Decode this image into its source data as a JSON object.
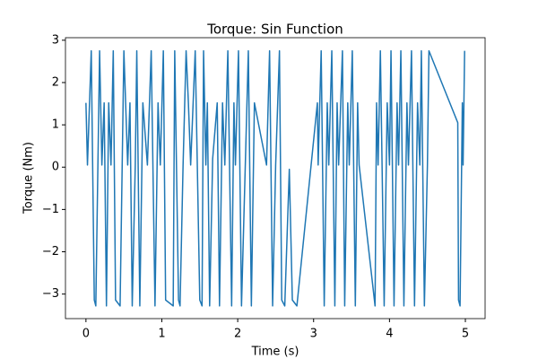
{
  "chart_data": {
    "type": "line",
    "title": "Torque: Sin Function",
    "xlabel": "Time (s)",
    "ylabel": "Torque (Nm)",
    "x": [
      0.0,
      0.02,
      0.07,
      0.11,
      0.13,
      0.18,
      0.21,
      0.24,
      0.27,
      0.3,
      0.33,
      0.36,
      0.39,
      0.45,
      0.5,
      0.55,
      0.58,
      0.61,
      0.65,
      0.67,
      0.71,
      0.75,
      0.81,
      0.86,
      0.91,
      0.95,
      0.98,
      1.02,
      1.05,
      1.15,
      1.17,
      1.22,
      1.24,
      1.28,
      1.32,
      1.35,
      1.38,
      1.44,
      1.5,
      1.53,
      1.55,
      1.58,
      1.6,
      1.63,
      1.67,
      1.73,
      1.76,
      1.8,
      1.83,
      1.87,
      1.92,
      1.95,
      1.97,
      2.01,
      2.05,
      2.1,
      2.14,
      2.18,
      2.22,
      2.38,
      2.42,
      2.46,
      2.5,
      2.55,
      2.58,
      2.62,
      2.68,
      2.72,
      2.78,
      3.05,
      3.06,
      3.1,
      3.14,
      3.18,
      3.2,
      3.24,
      3.28,
      3.31,
      3.33,
      3.38,
      3.41,
      3.45,
      3.47,
      3.51,
      3.55,
      3.58,
      3.6,
      3.81,
      3.83,
      3.85,
      3.88,
      3.93,
      3.97,
      4.0,
      4.02,
      4.06,
      4.1,
      4.12,
      4.15,
      4.19,
      4.23,
      4.25,
      4.29,
      4.33,
      4.37,
      4.4,
      4.42,
      4.46,
      4.5,
      4.52,
      4.9,
      4.91,
      4.93,
      4.96,
      4.97,
      4.99
    ],
    "series": [
      {
        "name": "Torque",
        "color": "#1f77b4",
        "values": [
          1.52,
          0.05,
          2.75,
          -3.14,
          -3.28,
          2.75,
          0.05,
          1.52,
          -3.28,
          1.52,
          0.05,
          2.75,
          -3.14,
          -3.28,
          2.75,
          0.05,
          1.52,
          -3.28,
          0.05,
          2.75,
          -3.28,
          1.52,
          0.05,
          2.75,
          -3.28,
          1.52,
          0.05,
          2.75,
          -3.14,
          -3.28,
          2.75,
          -3.14,
          -3.28,
          0.05,
          2.75,
          1.52,
          0.05,
          2.75,
          -3.14,
          -3.28,
          2.75,
          0.05,
          1.52,
          -3.28,
          0.2,
          1.52,
          -3.28,
          1.52,
          0.05,
          2.75,
          -3.28,
          1.52,
          0.05,
          2.75,
          -3.28,
          0.05,
          2.75,
          -3.28,
          1.52,
          0.05,
          2.75,
          -3.28,
          0.05,
          2.75,
          -3.14,
          -3.28,
          -0.05,
          -3.14,
          -3.28,
          1.52,
          0.05,
          2.75,
          -3.28,
          1.52,
          0.05,
          2.75,
          -3.28,
          1.52,
          0.05,
          2.75,
          -3.28,
          1.52,
          0.05,
          2.75,
          -3.28,
          1.52,
          0.05,
          -3.28,
          1.52,
          0.05,
          2.75,
          -3.28,
          1.52,
          0.05,
          2.75,
          -3.28,
          1.52,
          0.05,
          2.75,
          -3.28,
          1.52,
          0.05,
          2.75,
          -3.28,
          1.52,
          0.05,
          2.75,
          -3.28,
          0.05,
          2.75,
          1.05,
          -3.14,
          -3.28,
          1.52,
          0.05,
          2.75
        ]
      }
    ],
    "xlim": [
      -0.27,
      5.26
    ],
    "ylim": [
      -3.58,
      3.06
    ],
    "xticks": [
      0,
      1,
      2,
      3,
      4,
      5
    ],
    "yticks": [
      {
        "value": -3,
        "label": "−3"
      },
      {
        "value": -2,
        "label": "−2"
      },
      {
        "value": -1,
        "label": "−1"
      },
      0,
      1,
      2,
      3
    ]
  }
}
